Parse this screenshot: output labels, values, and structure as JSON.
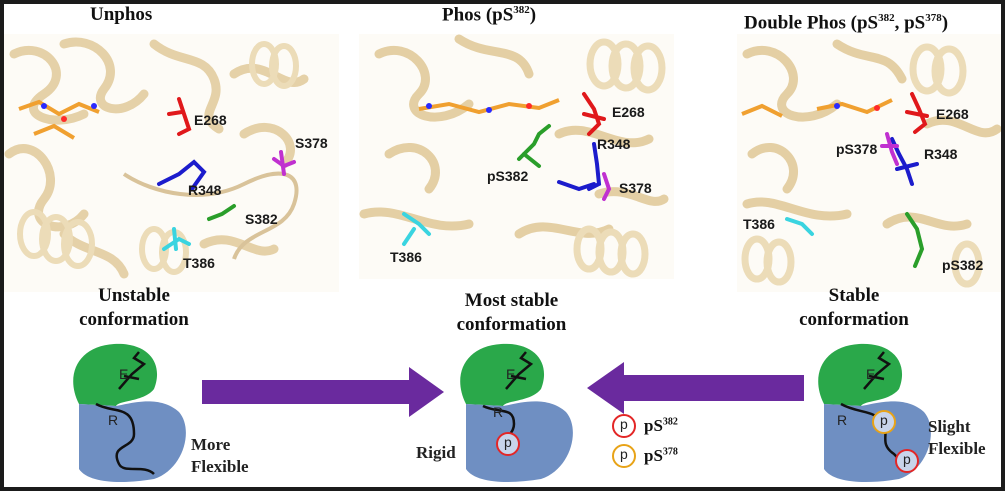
{
  "titles": {
    "unphos": "Unphos",
    "phos_prefix": "Phos (pS",
    "phos_sup": "382",
    "phos_suffix": ")",
    "double_prefix": "Double Phos (pS",
    "double_sup1": "382",
    "double_mid": ", pS",
    "double_sup2": "378",
    "double_suffix": ")"
  },
  "residue_labels": {
    "panel1": [
      "E268",
      "S378",
      "R348",
      "S382",
      "T386"
    ],
    "panel2": [
      "E268",
      "R348",
      "pS382",
      "S378",
      "T386"
    ],
    "panel3": [
      "E268",
      "pS378",
      "R348",
      "T386",
      "pS382"
    ]
  },
  "captions": {
    "left_line1": "Unstable",
    "left_line2": "conformation",
    "center_line1": "Most stable",
    "center_line2": "conformation",
    "right_line1": "Stable",
    "right_line2": "conformation"
  },
  "lobe_labels": {
    "top": "E",
    "bottom": "R"
  },
  "side_labels": {
    "left_line1": "More",
    "left_line2": "Flexible",
    "center": "Rigid",
    "right_line1": "Slight",
    "right_line2": "Flexible"
  },
  "phospho_symbol": "p",
  "legend": [
    {
      "prefix": "pS",
      "sup": "382",
      "ring_color": "#e32626"
    },
    {
      "prefix": "pS",
      "sup": "378",
      "ring_color": "#e8a317"
    }
  ],
  "colors": {
    "ribbon": "#e8d5ae",
    "E268": "#e0181b",
    "R348": "#1c1ccc",
    "S378": "#c030d0",
    "S382": "#2a9e2a",
    "T386": "#3ad4e0",
    "ligand": "#f0a030",
    "upper_lobe": "#2aa84a",
    "lower_lobe": "#6f8fc2",
    "arrow": "#6a2a9e"
  }
}
